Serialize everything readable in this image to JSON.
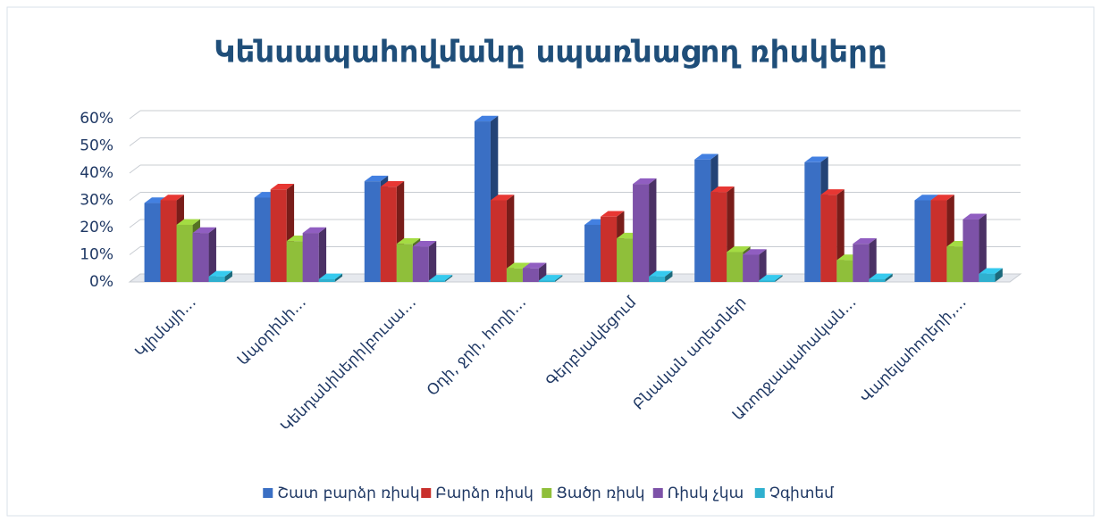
{
  "chart_data": {
    "type": "bar3d",
    "title": "Կենսապահովմանը սպառնացող ռիսկերը",
    "categories": [
      "Կլիմայի…",
      "Ապօրինի…",
      "Կենդանիների|բուսա…",
      "Օդի, ջրի, հողի…",
      "Գերբնակեցում",
      "Բնական աղետներ",
      "Առողջապահական…",
      "Վարելահողերի,…"
    ],
    "series": [
      {
        "name": "Շատ բարձր ռիսկ",
        "color": "#3a6fc4",
        "values": [
          29,
          31,
          37,
          59,
          21,
          45,
          44,
          30
        ]
      },
      {
        "name": "Բարձր ռիսկ",
        "color": "#c9302c",
        "values": [
          30,
          34,
          35,
          30,
          24,
          33,
          32,
          30
        ]
      },
      {
        "name": "Ցածր ռիսկ",
        "color": "#8fbf3a",
        "values": [
          21,
          15,
          14,
          5,
          16,
          11,
          8,
          13
        ]
      },
      {
        "name": "Ռիսկ չկա",
        "color": "#7d52a8",
        "values": [
          18,
          18,
          13,
          5,
          36,
          10,
          14,
          23
        ]
      },
      {
        "name": "Չգիտեմ",
        "color": "#2fb0cf",
        "values": [
          2,
          1,
          0.5,
          0.5,
          2,
          0.5,
          1,
          3
        ]
      }
    ],
    "ylim": [
      0,
      60
    ],
    "yticks": [
      {
        "value": 0,
        "label": "0%"
      },
      {
        "value": 10,
        "label": "10%"
      },
      {
        "value": 20,
        "label": "20%"
      },
      {
        "value": 30,
        "label": "30%"
      },
      {
        "value": 40,
        "label": "40%"
      },
      {
        "value": 50,
        "label": "50%"
      },
      {
        "value": 60,
        "label": "60%"
      }
    ],
    "grid": true,
    "legend": "bottom"
  }
}
